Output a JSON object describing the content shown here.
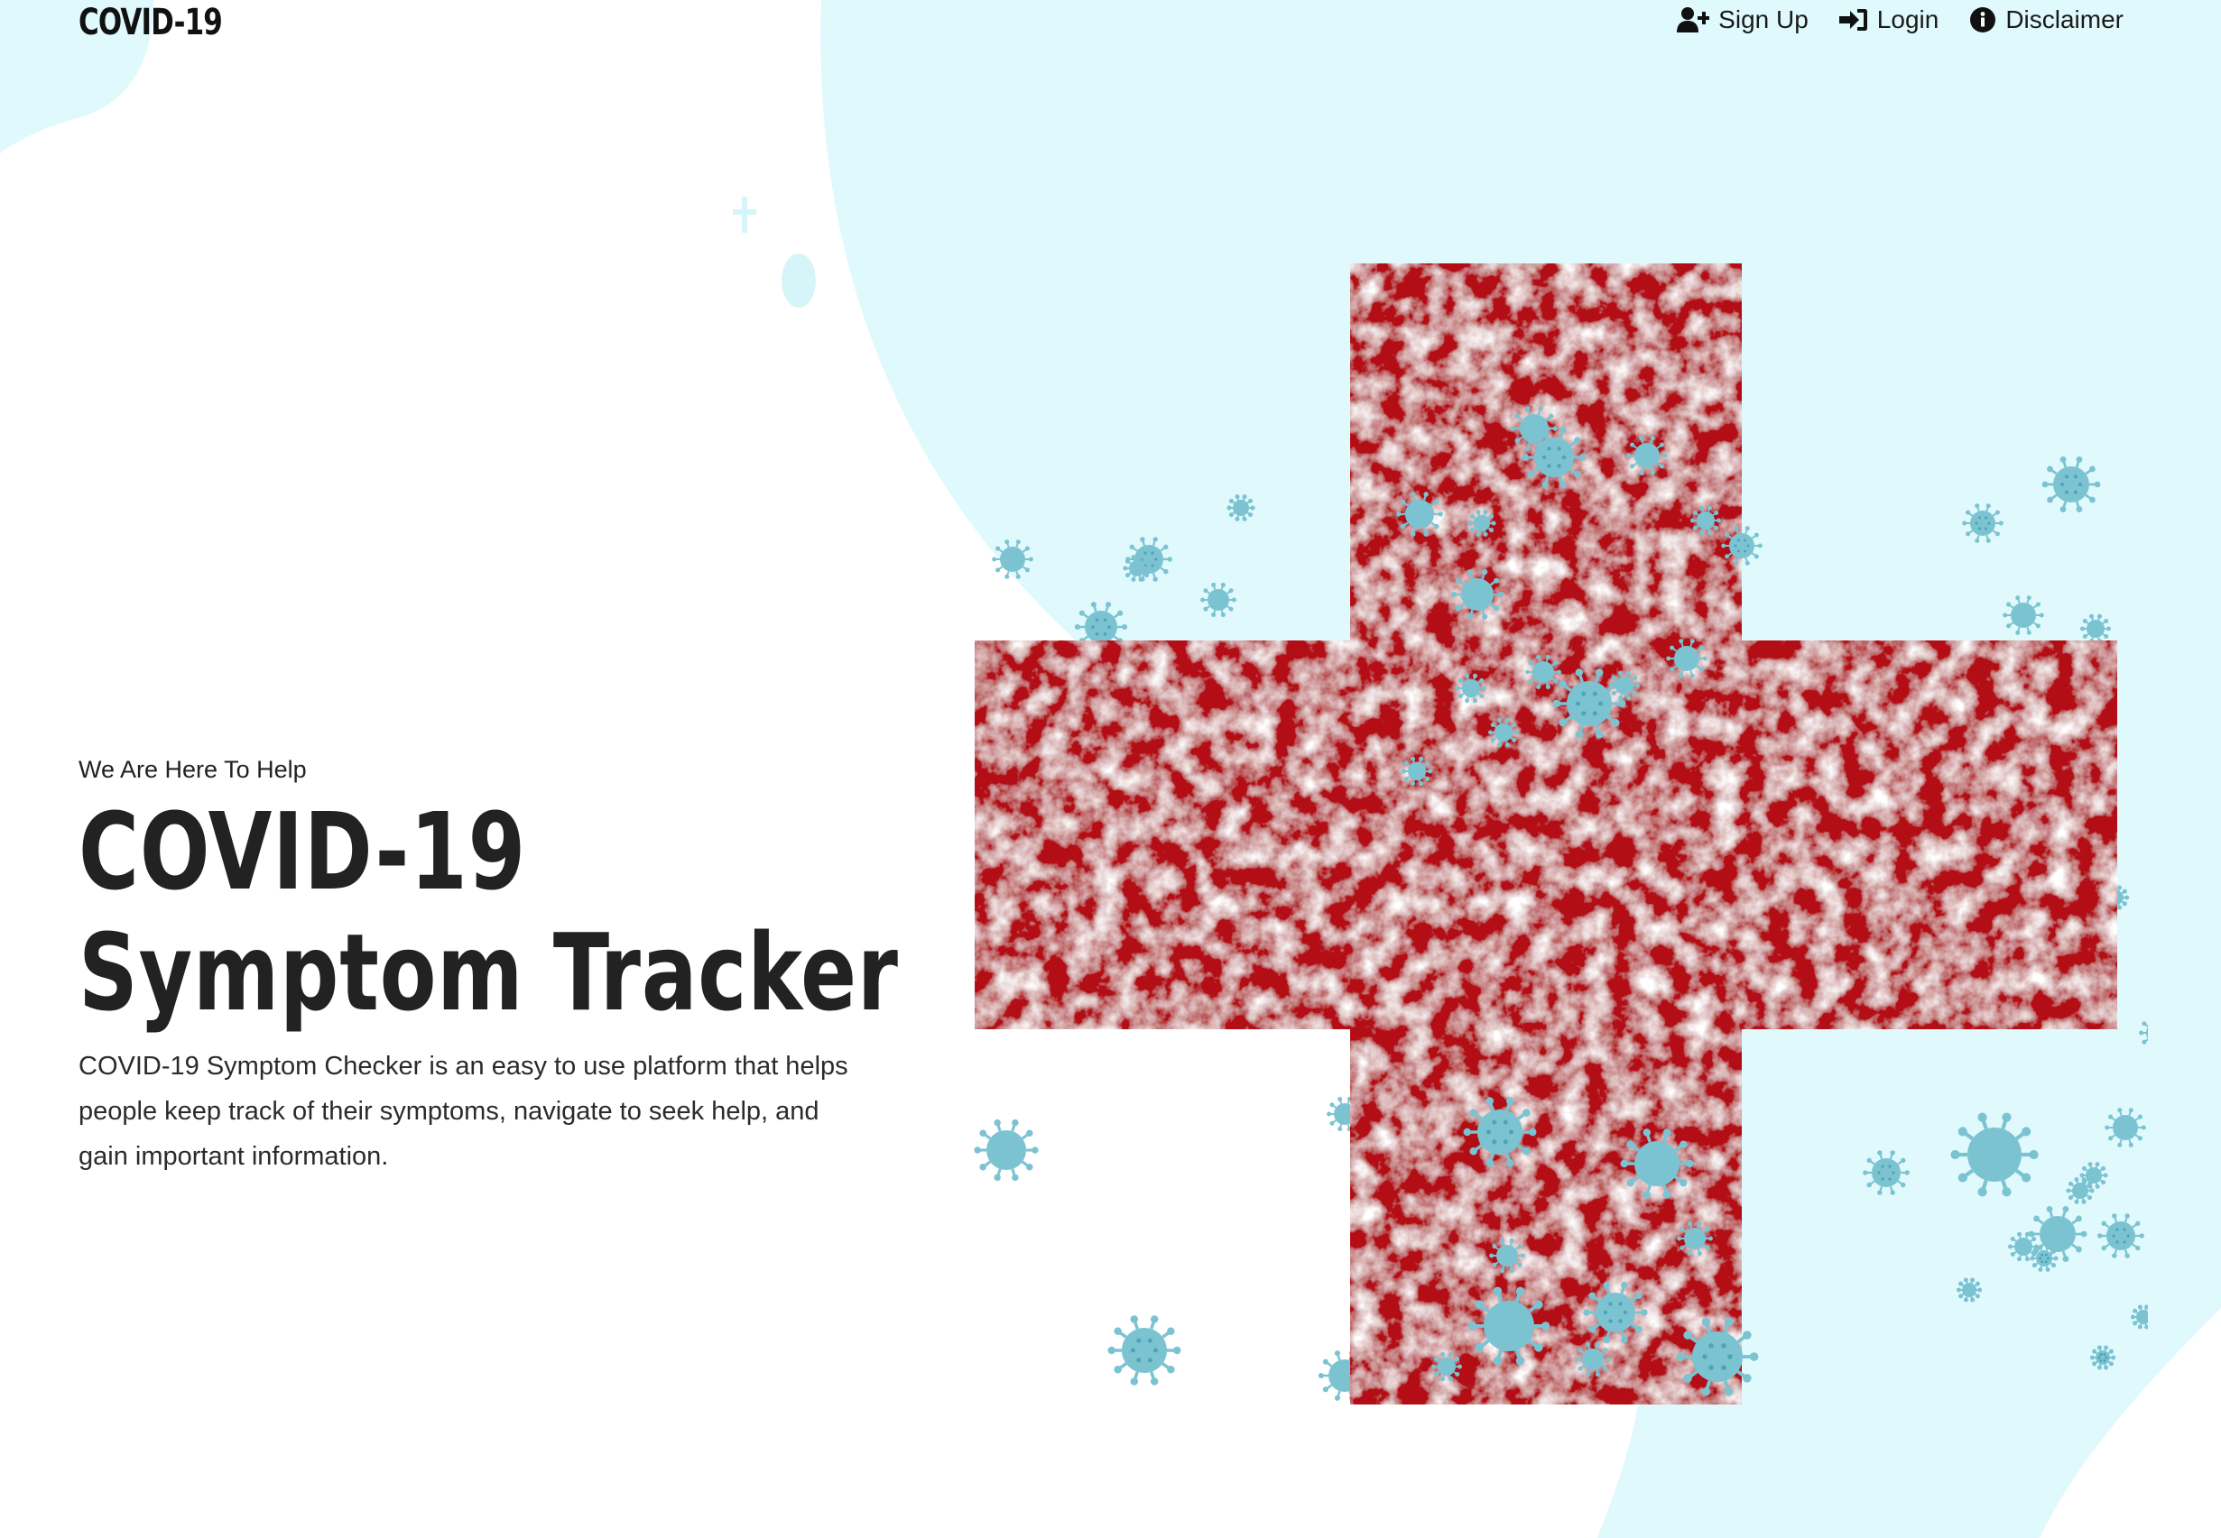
{
  "navbar": {
    "brand": "COVID-19",
    "links": [
      {
        "label": "Sign Up",
        "icon": "user-plus-icon"
      },
      {
        "label": "Login",
        "icon": "sign-in-icon"
      },
      {
        "label": "Disclaimer",
        "icon": "info-circle-icon"
      }
    ]
  },
  "hero": {
    "eyebrow": "We Are Here To Help",
    "title_line1": "COVID-19",
    "title_line2": "Symptom Tracker",
    "description": "COVID-19 Symptom Checker is an easy to use platform that helps people keep track of their symptoms, navigate to seek help, and gain important information."
  },
  "illustration": {
    "subject": "red-cross-with-virus-particles",
    "cross_color": "#b30f12",
    "virus_color": "#7cc3d2"
  },
  "colors": {
    "background_blob": "#dff9fc",
    "text": "#212529"
  }
}
